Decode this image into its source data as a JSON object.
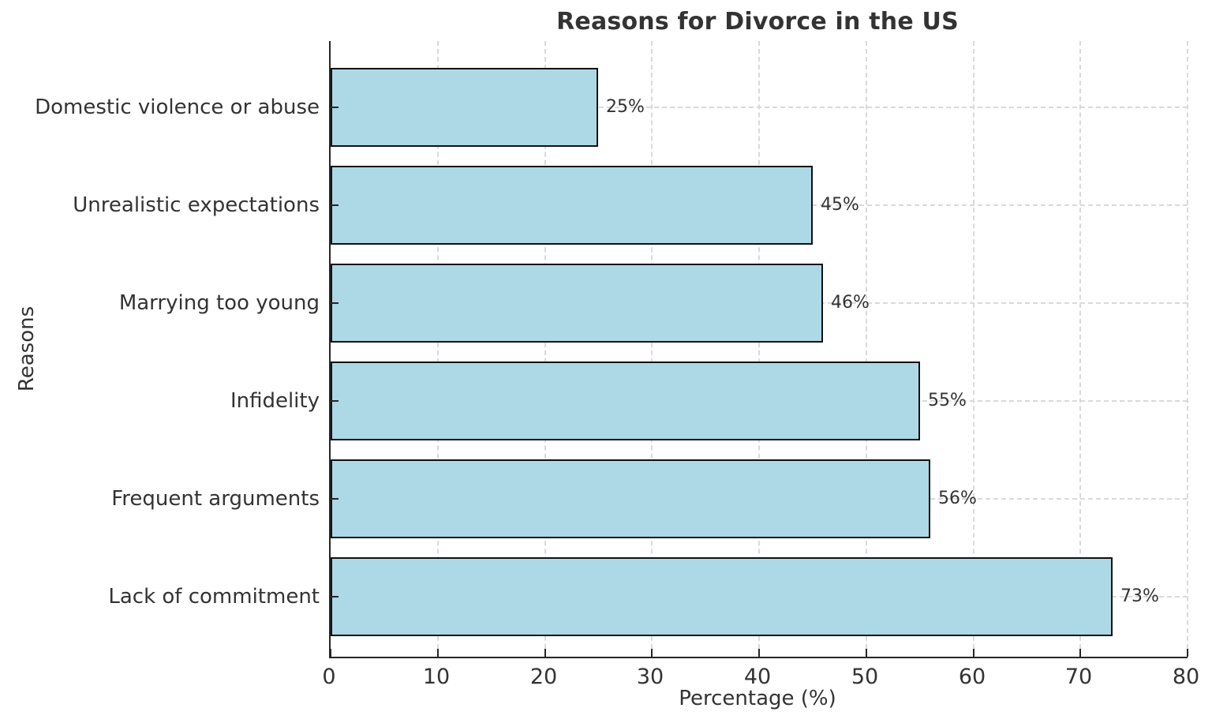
{
  "chart_data": {
    "type": "bar",
    "orientation": "horizontal",
    "title": "Reasons for Divorce in the US",
    "xlabel": "Percentage (%)",
    "ylabel": "Reasons",
    "categories": [
      "Domestic violence or abuse",
      "Unrealistic expectations",
      "Marrying too young",
      "Infidelity",
      "Frequent arguments",
      "Lack of commitment"
    ],
    "values": [
      25,
      45,
      46,
      55,
      56,
      73
    ],
    "value_labels": [
      "25%",
      "45%",
      "46%",
      "55%",
      "56%",
      "73%"
    ],
    "xlim": [
      0,
      80
    ],
    "xticks": [
      0,
      10,
      20,
      30,
      40,
      50,
      60,
      70,
      80
    ],
    "grid": "dashed",
    "legend": "none",
    "colors": {
      "bar_fill": "#ADD8E6",
      "bar_edge": "#111111",
      "grid": "#d9d9d9",
      "spine": "#262626",
      "text": "#333333"
    }
  }
}
